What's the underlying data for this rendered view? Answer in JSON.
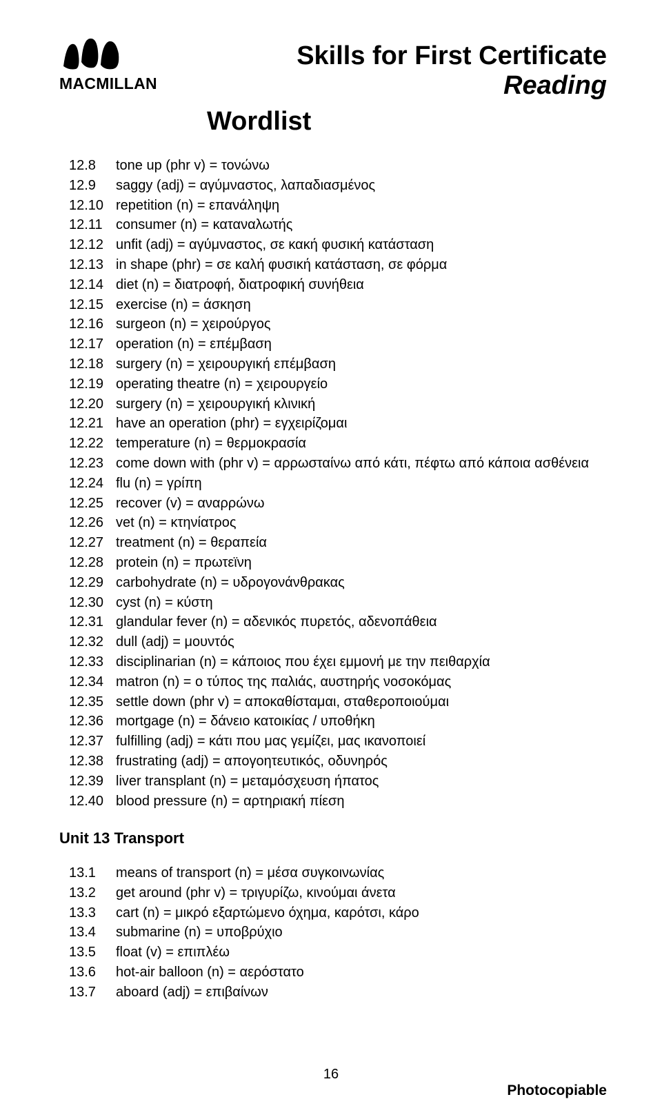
{
  "logo": {
    "brand": "MACMILLAN"
  },
  "header": {
    "title_line1": "Skills for First Certificate",
    "title_line2": "Reading",
    "wordlist": "Wordlist"
  },
  "entries_top": [
    {
      "num": "12.8",
      "text": "tone up (phr v) = τονώνω"
    },
    {
      "num": "12.9",
      "text": "saggy (adj) = αγύμναστος, λαπαδιασμένος"
    },
    {
      "num": "12.10",
      "text": "repetition (n) = επανάληψη"
    },
    {
      "num": "12.11",
      "text": "consumer (n) = καταναλωτής"
    },
    {
      "num": "12.12",
      "text": "unfit (adj) = αγύμναστος, σε κακή φυσική κατάσταση"
    },
    {
      "num": "12.13",
      "text": "in shape (phr) = σε καλή φυσική κατάσταση, σε φόρμα"
    },
    {
      "num": "12.14",
      "text": "diet (n) = διατροφή, διατροφική συνήθεια"
    },
    {
      "num": "12.15",
      "text": "exercise (n) = άσκηση"
    },
    {
      "num": "12.16",
      "text": "surgeon (n) = χειρούργος"
    },
    {
      "num": "12.17",
      "text": "operation (n) = επέμβαση"
    },
    {
      "num": "12.18",
      "text": "surgery (n) = χειρουργική επέμβαση"
    },
    {
      "num": "12.19",
      "text": "operating theatre (n) = χειρουργείο"
    },
    {
      "num": "12.20",
      "text": "surgery (n) = χειρουργική κλινική"
    },
    {
      "num": "12.21",
      "text": "have an operation (phr) = εγχειρίζομαι"
    },
    {
      "num": "12.22",
      "text": "temperature (n) = θερμοκρασία"
    },
    {
      "num": "12.23",
      "text": "come down with (phr v) = αρρωσταίνω από κάτι, πέφτω από κάποια ασθένεια"
    },
    {
      "num": "12.24",
      "text": "flu (n) = γρίπη"
    },
    {
      "num": "12.25",
      "text": "recover (v) = αναρρώνω"
    },
    {
      "num": "12.26",
      "text": "vet (n) = κτηνίατρος"
    },
    {
      "num": "12.27",
      "text": "treatment (n) = θεραπεία"
    },
    {
      "num": "12.28",
      "text": "protein (n) = πρωτεϊνη"
    },
    {
      "num": "12.29",
      "text": "carbohydrate (n) = υδρογονάνθρακας"
    },
    {
      "num": "12.30",
      "text": "cyst (n) = κύστη"
    },
    {
      "num": "12.31",
      "text": "glandular fever (n) = αδενικός πυρετός, αδενοπάθεια"
    },
    {
      "num": "12.32",
      "text": "dull (adj) = μουντός"
    },
    {
      "num": "12.33",
      "text": "disciplinarian (n) = κάποιος που έχει εμμονή με την πειθαρχία"
    },
    {
      "num": "12.34",
      "text": "matron (n) = ο τύπος της παλιάς, αυστηρής νοσοκόμας"
    },
    {
      "num": "12.35",
      "text": "settle down (phr v) = αποκαθίσταμαι, σταθεροποιούμαι"
    },
    {
      "num": "12.36",
      "text": "mortgage (n) = δάνειο κατοικίας / υποθήκη"
    },
    {
      "num": "12.37",
      "text": "fulfilling (adj) = κάτι που μας γεμίζει, μας ικανοποιεί"
    },
    {
      "num": "12.38",
      "text": "frustrating (adj) = απογοητευτικός, οδυνηρός"
    },
    {
      "num": "12.39",
      "text": "liver transplant (n) = μεταμόσχευση ήπατος"
    },
    {
      "num": "12.40",
      "text": "blood pressure (n) = αρτηριακή πίεση"
    }
  ],
  "unit_heading": "Unit 13 Transport",
  "entries_bottom": [
    {
      "num": "13.1",
      "text": "means of transport (n) = μέσα συγκοινωνίας"
    },
    {
      "num": "13.2",
      "text": "get around (phr v) = τριγυρίζω, κινούμαι άνετα"
    },
    {
      "num": "13.3",
      "text": "cart (n) = μικρό εξαρτώμενο όχημα, καρότσι, κάρο"
    },
    {
      "num": "13.4",
      "text": "submarine (n) = υποβρύχιο"
    },
    {
      "num": "13.5",
      "text": "float (v) = επιπλέω"
    },
    {
      "num": "13.6",
      "text": "hot-air balloon (n) = αερόστατο"
    },
    {
      "num": "13.7",
      "text": "aboard (adj) = επιβαίνων"
    }
  ],
  "footer": {
    "page_number": "16",
    "photocopiable": "Photocopiable"
  }
}
